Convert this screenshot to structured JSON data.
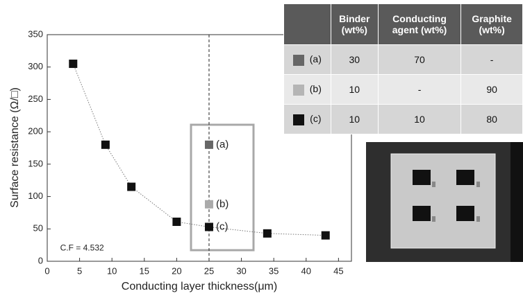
{
  "chart_data": {
    "type": "scatter",
    "xlabel": "Conducting layer thickness(μm)",
    "ylabel": "Surface resistance (Ω/□)",
    "xlim": [
      0,
      47
    ],
    "ylim": [
      0,
      350
    ],
    "xticks": [
      0,
      5,
      10,
      15,
      20,
      25,
      30,
      35,
      40,
      45
    ],
    "yticks": [
      0,
      50,
      100,
      150,
      200,
      250,
      300,
      350
    ],
    "vline": 25,
    "series": [
      {
        "color": "#111111",
        "x": [
          4,
          9,
          13,
          20,
          25,
          34,
          43
        ],
        "values": [
          305,
          180,
          115,
          61,
          53,
          43,
          40
        ]
      },
      {
        "name": "(a)",
        "color": "#666666",
        "x": [
          25
        ],
        "values": [
          180
        ]
      },
      {
        "name": "(b)",
        "color": "#aaaaaa",
        "x": [
          25
        ],
        "values": [
          88
        ]
      }
    ],
    "annotations": [
      {
        "text": "(c)",
        "x": 25,
        "y": 53
      },
      {
        "text": "C.F = 4.532",
        "x": 2,
        "y": 20
      }
    ]
  },
  "table": {
    "header": [
      "",
      "Binder (wt%)",
      "Conducting agent (wt%)",
      "Graphite (wt%)"
    ],
    "rows": [
      {
        "swatch": "#666666",
        "cells": [
          "(a)",
          30,
          70,
          "-"
        ]
      },
      {
        "swatch": "#b5b5b5",
        "cells": [
          "(b)",
          10,
          "-",
          90
        ]
      },
      {
        "swatch": "#111111",
        "cells": [
          "(c)",
          10,
          10,
          80
        ]
      }
    ]
  }
}
